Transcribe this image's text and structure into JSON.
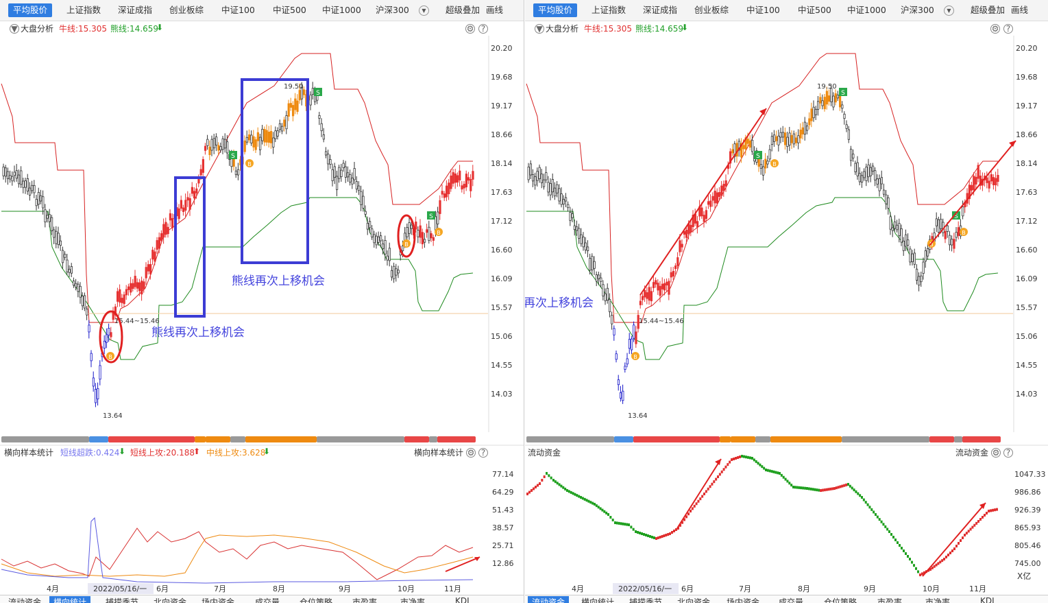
{
  "tabs": [
    "平均股价",
    "上证指数",
    "深证成指",
    "创业板综",
    "中证100",
    "中证500",
    "中证1000",
    "沪深300",
    "超级叠加",
    "画线"
  ],
  "left": {
    "info": {
      "name": "大盘分析",
      "bull": "牛线:15.305",
      "bear": "熊线:14.659",
      "bear_arrow": "⬇"
    },
    "y_labels": [
      "20.20",
      "19.68",
      "19.17",
      "18.66",
      "18.14",
      "17.63",
      "17.12",
      "16.60",
      "16.09",
      "15.57",
      "15.06",
      "14.55",
      "14.03"
    ],
    "high_label": "19.50",
    "low_label": "13.64",
    "level_label": "15.44~15.46",
    "annotation_1": "熊线再次上移机会",
    "annotation_2": "熊线再次上移机会",
    "sub_info": {
      "name": "横向样本统计",
      "s1": "短线超跌:0.424",
      "s1_arrow": "⬇",
      "s2": "短线上攻:20.188",
      "s2_arrow": "⬆",
      "s3": "中线上攻:3.628",
      "s3_arrow": "⬇",
      "right": "横向样本统计"
    },
    "sub_y_labels": [
      "77.14",
      "64.29",
      "51.43",
      "38.57",
      "25.71",
      "12.86"
    ],
    "x_labels": [
      "4月",
      "2022/05/16/一",
      "6月",
      "7月",
      "8月",
      "9月",
      "10月",
      "11月"
    ],
    "bottom_tabs": [
      "流动资金",
      "横向统计",
      "捕捞季节",
      "北向资金",
      "场内资金",
      "成交量",
      "仓位策略",
      "市盈率",
      "市净率",
      "KDJ"
    ]
  },
  "right": {
    "info": {
      "name": "大盘分析",
      "bull": "牛线:15.305",
      "bear": "熊线:14.659",
      "bear_arrow": "⬇"
    },
    "y_labels": [
      "20.20",
      "19.68",
      "19.17",
      "18.66",
      "18.14",
      "17.63",
      "17.12",
      "16.60",
      "16.09",
      "15.57",
      "15.06",
      "14.55",
      "14.03"
    ],
    "high_label": "19.50",
    "low_label": "13.64",
    "level_label": "15.44~15.46",
    "annotation": "期待熊线再次上移机会",
    "sub_info": {
      "name": "流动资金",
      "right": "流动资金"
    },
    "sub_y_labels": [
      "1047.33",
      "986.86",
      "926.39",
      "865.93",
      "805.46",
      "745.00"
    ],
    "sub_unit": "X亿",
    "x_labels": [
      "4月",
      "2022/05/16/一",
      "6月",
      "7月",
      "8月",
      "9月",
      "10月",
      "11月"
    ],
    "bottom_tabs": [
      "流动资金",
      "横向统计",
      "捕捞季节",
      "北向资金",
      "场内资金",
      "成交量",
      "仓位策略",
      "市盈率",
      "市净率",
      "KDJ"
    ]
  },
  "colors": {
    "accent": "#2f7de1",
    "bull": "#e03030",
    "bear": "#22a02a",
    "up": "#e64040",
    "orange": "#ee8a10",
    "dark": "#444444",
    "blue": "#2222cc"
  }
}
